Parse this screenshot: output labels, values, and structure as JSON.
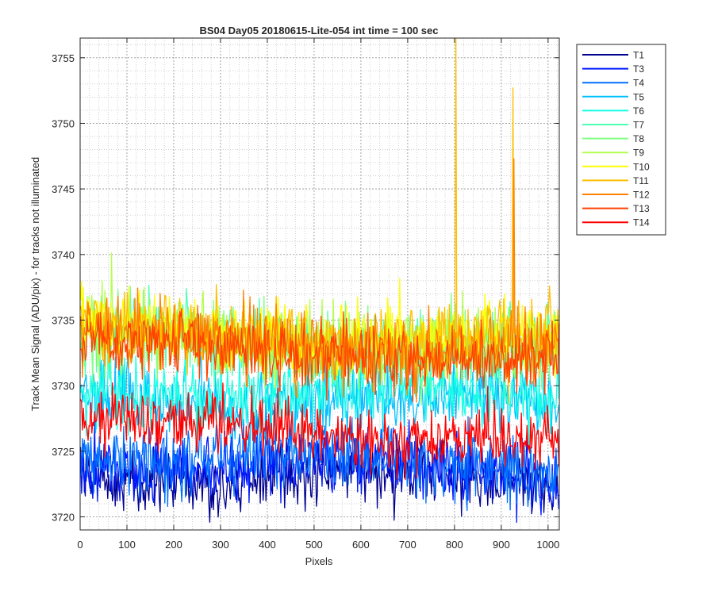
{
  "chart_data": {
    "type": "line",
    "title": "BS04 Day05 20180615-Lite-054 int time = 100 sec",
    "xlabel": "Pixels",
    "ylabel": "Track Mean Signal (ADU/pix) - for tracks not illuminated",
    "xlim": [
      0,
      1024
    ],
    "ylim": [
      3719,
      3756.5
    ],
    "xticks": [
      0,
      100,
      200,
      300,
      400,
      500,
      600,
      700,
      800,
      900,
      1000
    ],
    "yticks": [
      3720,
      3725,
      3730,
      3735,
      3740,
      3745,
      3750,
      3755
    ],
    "grid": true,
    "minor_grid": true,
    "legend_position": "outside-top-right",
    "series": [
      {
        "name": "T1",
        "color": "#00008f",
        "center": 3723.0,
        "noise": 1.3
      },
      {
        "name": "T3",
        "color": "#0019ff",
        "center": 3723.8,
        "noise": 1.3
      },
      {
        "name": "T4",
        "color": "#0070ff",
        "center": 3724.3,
        "noise": 1.3
      },
      {
        "name": "T5",
        "color": "#00c0ff",
        "center": 3728.8,
        "noise": 1.3
      },
      {
        "name": "T6",
        "color": "#19ffe6",
        "center": 3729.5,
        "noise": 1.3
      },
      {
        "name": "T7",
        "color": "#4dffb3",
        "center": 3733.0,
        "noise": 1.4
      },
      {
        "name": "T8",
        "color": "#80ff80",
        "center": 3733.3,
        "noise": 1.4
      },
      {
        "name": "T9",
        "color": "#b3ff4d",
        "center": 3733.6,
        "noise": 1.4
      },
      {
        "name": "T10",
        "color": "#ffff00",
        "center": 3734.0,
        "noise": 1.4
      },
      {
        "name": "T11",
        "color": "#ffbf00",
        "center": 3733.8,
        "noise": 1.4,
        "spikes": [
          {
            "x": 803,
            "y": 3757.0
          },
          {
            "x": 925,
            "y": 3752.7
          }
        ]
      },
      {
        "name": "T12",
        "color": "#ff8000",
        "center": 3733.2,
        "noise": 1.4,
        "spikes": [
          {
            "x": 927,
            "y": 3747.3
          }
        ]
      },
      {
        "name": "T13",
        "color": "#ff4000",
        "center": 3732.6,
        "noise": 1.3
      },
      {
        "name": "T14",
        "color": "#ff0000",
        "center": 3726.5,
        "noise": 1.1
      }
    ]
  }
}
